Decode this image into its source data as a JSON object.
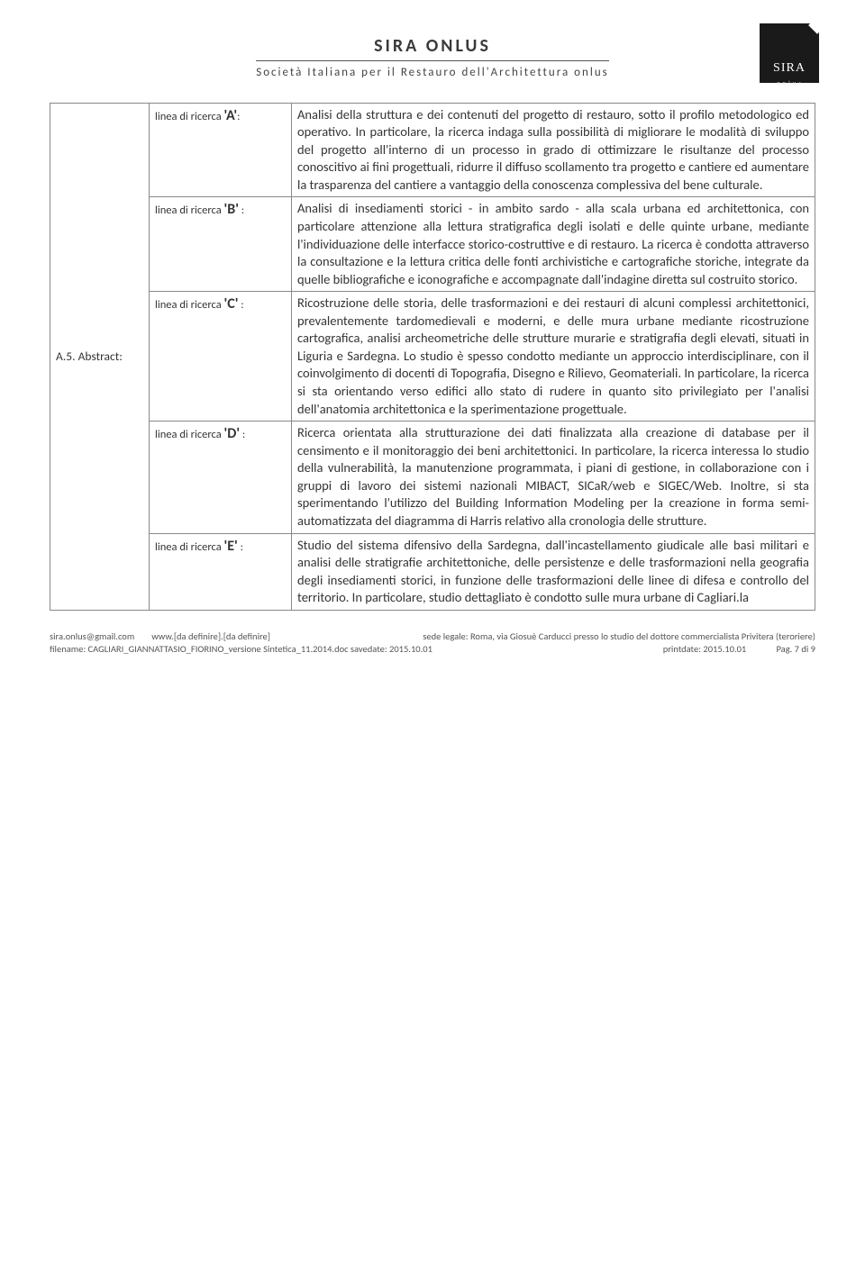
{
  "header": {
    "org_name": "SIRA ONLUS",
    "org_sub": "Società Italiana per il Restauro dell'Architettura onlus",
    "logo_text": "SIRA",
    "logo_sub": "o n l u s"
  },
  "section_label": "A.5. Abstract:",
  "rows": [
    {
      "label_prefix": "linea di ricerca ",
      "letter": "'A'",
      "suffix": ":",
      "text": "Analisi della struttura e dei contenuti del progetto di restauro, sotto il profilo metodologico ed operativo. In particolare, la ricerca indaga sulla possibilità di migliorare le modalità di sviluppo del progetto all'interno di un processo in grado di ottimizzare le risultanze del processo conoscitivo ai fini progettuali, ridurre il diffuso scollamento tra progetto e cantiere ed aumentare la trasparenza del cantiere a vantaggio della conoscenza complessiva del bene culturale."
    },
    {
      "label_prefix": "linea di ricerca ",
      "letter": "'B'",
      "suffix": " :",
      "text": "Analisi di insediamenti storici - in ambito sardo - alla scala urbana ed architettonica, con particolare attenzione alla lettura stratigrafica degli isolati e delle quinte urbane, mediante l'individuazione delle interfacce storico-costruttive e di restauro. La ricerca è condotta attraverso la consultazione e la lettura critica delle fonti archivistiche e cartografiche storiche, integrate da quelle bibliografiche e iconografiche e accompagnate dall'indagine diretta sul costruito storico."
    },
    {
      "label_prefix": "linea di ricerca ",
      "letter": "'C'",
      "suffix": " :",
      "text": "Ricostruzione delle storia, delle trasformazioni e dei restauri di alcuni complessi architettonici, prevalentemente tardomedievali e moderni, e delle mura urbane mediante ricostruzione cartografica, analisi archeometriche delle strutture murarie e stratigrafia degli elevati, situati in Liguria e Sardegna. Lo studio è spesso condotto mediante un approccio interdisciplinare, con il coinvolgimento di docenti di Topografia, Disegno e Rilievo, Geomateriali. In particolare, la ricerca si sta orientando verso edifici allo stato di rudere in quanto sito privilegiato per l'analisi dell'anatomia architettonica e la sperimentazione progettuale."
    },
    {
      "label_prefix": "linea di ricerca ",
      "letter": "'D'",
      "suffix": " :",
      "text": "Ricerca orientata alla strutturazione dei dati finalizzata alla creazione di database per il censimento e il monitoraggio dei beni architettonici. In particolare, la ricerca interessa lo studio della vulnerabilità, la manutenzione programmata, i piani di gestione, in collaborazione con i gruppi di lavoro dei sistemi nazionali MIBACT, SICaR/web e SIGEC/Web. Inoltre, si sta sperimentando l'utilizzo del Building Information Modeling per la creazione in forma semi-automatizzata del diagramma di Harris relativo alla cronologia delle strutture."
    },
    {
      "label_prefix": "linea di ricerca ",
      "letter": "'E'",
      "suffix": " :",
      "text": "Studio del sistema difensivo della Sardegna, dall'incastellamento giudicale alle basi militari e analisi delle stratigrafie architettoniche, delle persistenze e delle trasformazioni nella geografia degli insediamenti storici, in funzione delle trasformazioni delle linee di difesa e controllo del territorio. In particolare, studio dettagliato è condotto sulle mura urbane di Cagliari.la"
    }
  ],
  "footer": {
    "email": "sira.onlus@gmail.com",
    "web": "www.[da definire].[da definire]",
    "sede": "sede legale: Roma, via Giosuè Carducci presso lo studio del dottore commercialista Privitera (teroriere)",
    "filename": "filename: CAGLIARI_GIANNATTASIO_FIORINO_versione Sintetica_11.2014.doc savedate: 2015.10.01",
    "printdate": "printdate: 2015.10.01",
    "page": "Pag. 7 di 9"
  }
}
